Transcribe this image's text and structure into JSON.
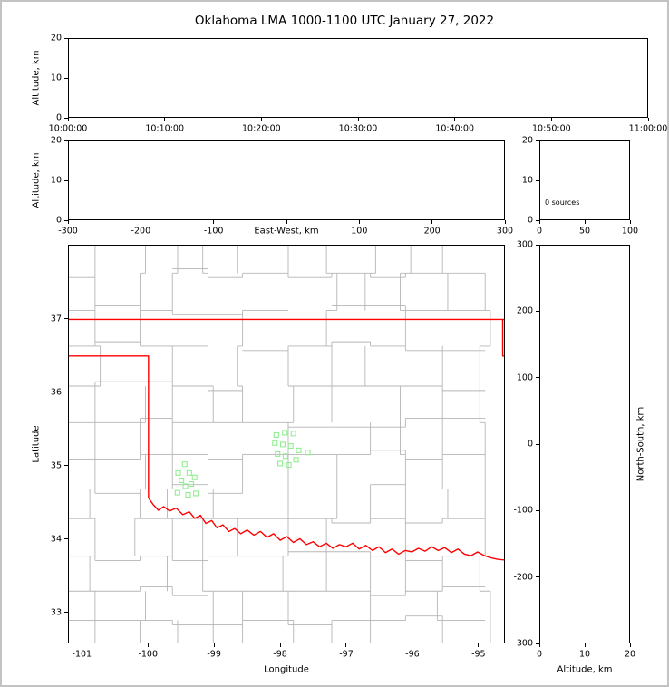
{
  "title": "Oklahoma LMA 1000-1100 UTC January 27, 2022",
  "colors": {
    "page_border": "#c3c3c3",
    "axis": "#000000",
    "state_border": "#ff0000",
    "county_line": "#b5b5b5",
    "source_marker": "#90ee90"
  },
  "chart_data": [
    {
      "name": "time_height",
      "type": "scatter",
      "title": "",
      "xlabel": "",
      "ylabel": "Altitude, km",
      "xlim": [
        0,
        6
      ],
      "xticks": [
        0,
        1,
        2,
        3,
        4,
        5,
        6
      ],
      "xtick_labels": [
        "10:00:00",
        "10:10:00",
        "10:20:00",
        "10:30:00",
        "10:40:00",
        "10:50:00",
        "11:00:00"
      ],
      "ylim": [
        0,
        20
      ],
      "yticks": [
        0,
        10,
        20
      ],
      "grid": false,
      "points": []
    },
    {
      "name": "ew_height",
      "type": "scatter",
      "xlabel": "East-West, km",
      "ylabel": "Altitude, km",
      "xlim": [
        -300,
        300
      ],
      "xticks": [
        -300,
        -200,
        -100,
        0,
        100,
        200,
        300
      ],
      "xtick_labels": [
        "-300",
        "-200",
        "-100",
        "",
        "100",
        "200",
        "300"
      ],
      "ylim": [
        0,
        20
      ],
      "yticks": [
        0,
        10,
        20
      ],
      "grid": false,
      "points": []
    },
    {
      "name": "source_histogram",
      "type": "line",
      "annotation": "0 sources",
      "xlabel": "",
      "ylabel": "",
      "xlim": [
        0,
        100
      ],
      "xticks": [
        0,
        50,
        100
      ],
      "ylim": [
        0,
        20
      ],
      "yticks": [
        0,
        10,
        20
      ],
      "grid": false,
      "points": []
    },
    {
      "name": "plan_view",
      "type": "scatter",
      "xlabel": "Longitude",
      "ylabel": "Latitude",
      "xlim": [
        -101.21,
        -94.6
      ],
      "xticks": [
        -101,
        -100,
        -99,
        -98,
        -97,
        -96,
        -95
      ],
      "ylim": [
        32.58,
        38.01
      ],
      "yticks": [
        33,
        34,
        35,
        36,
        37
      ],
      "grid": false,
      "marker": "open-square",
      "marker_size_px": 5,
      "sources_lonlat": [
        [
          -99.45,
          35.02
        ],
        [
          -99.55,
          34.9
        ],
        [
          -99.38,
          34.9
        ],
        [
          -99.5,
          34.8
        ],
        [
          -99.3,
          34.84
        ],
        [
          -99.44,
          34.72
        ],
        [
          -99.35,
          34.75
        ],
        [
          -99.56,
          34.63
        ],
        [
          -99.4,
          34.6
        ],
        [
          -99.28,
          34.62
        ],
        [
          -98.06,
          35.42
        ],
        [
          -97.93,
          35.45
        ],
        [
          -97.8,
          35.44
        ],
        [
          -98.08,
          35.31
        ],
        [
          -97.96,
          35.29
        ],
        [
          -97.84,
          35.27
        ],
        [
          -98.04,
          35.16
        ],
        [
          -97.92,
          35.13
        ],
        [
          -97.72,
          35.21
        ],
        [
          -97.58,
          35.18
        ],
        [
          -98.0,
          35.03
        ],
        [
          -97.87,
          35.01
        ],
        [
          -97.76,
          35.08
        ]
      ],
      "state_border_paths": {
        "kansas_border": [
          [
            -101.21,
            37.0
          ],
          [
            -94.6,
            37.0
          ]
        ],
        "eastern_border": [
          [
            -94.62,
            37.0
          ],
          [
            -94.62,
            36.5
          ],
          [
            -94.6,
            36.5
          ]
        ],
        "panhandle_and_texas_border": [
          [
            -101.21,
            36.5
          ],
          [
            -100.0,
            36.5
          ],
          [
            -100.0,
            34.56
          ]
        ],
        "red_river_border": [
          [
            -100.0,
            34.56
          ],
          [
            -99.93,
            34.47
          ],
          [
            -99.85,
            34.39
          ],
          [
            -99.77,
            34.44
          ],
          [
            -99.68,
            34.38
          ],
          [
            -99.58,
            34.42
          ],
          [
            -99.48,
            34.33
          ],
          [
            -99.38,
            34.37
          ],
          [
            -99.3,
            34.28
          ],
          [
            -99.21,
            34.32
          ],
          [
            -99.13,
            34.21
          ],
          [
            -99.04,
            34.25
          ],
          [
            -98.96,
            34.15
          ],
          [
            -98.87,
            34.19
          ],
          [
            -98.78,
            34.1
          ],
          [
            -98.69,
            34.14
          ],
          [
            -98.6,
            34.07
          ],
          [
            -98.5,
            34.12
          ],
          [
            -98.4,
            34.05
          ],
          [
            -98.3,
            34.1
          ],
          [
            -98.2,
            34.02
          ],
          [
            -98.1,
            34.07
          ],
          [
            -98.0,
            33.98
          ],
          [
            -97.9,
            34.03
          ],
          [
            -97.8,
            33.95
          ],
          [
            -97.7,
            34.0
          ],
          [
            -97.6,
            33.92
          ],
          [
            -97.5,
            33.96
          ],
          [
            -97.4,
            33.89
          ],
          [
            -97.3,
            33.94
          ],
          [
            -97.2,
            33.87
          ],
          [
            -97.1,
            33.92
          ],
          [
            -97.0,
            33.89
          ],
          [
            -96.9,
            33.94
          ],
          [
            -96.8,
            33.86
          ],
          [
            -96.7,
            33.91
          ],
          [
            -96.6,
            33.84
          ],
          [
            -96.5,
            33.89
          ],
          [
            -96.4,
            33.81
          ],
          [
            -96.3,
            33.86
          ],
          [
            -96.2,
            33.79
          ],
          [
            -96.1,
            33.84
          ],
          [
            -96.0,
            33.82
          ],
          [
            -95.9,
            33.87
          ],
          [
            -95.8,
            33.83
          ],
          [
            -95.7,
            33.89
          ],
          [
            -95.6,
            33.84
          ],
          [
            -95.5,
            33.88
          ],
          [
            -95.4,
            33.81
          ],
          [
            -95.3,
            33.86
          ],
          [
            -95.2,
            33.79
          ],
          [
            -95.1,
            33.77
          ],
          [
            -95.0,
            33.82
          ],
          [
            -94.9,
            33.77
          ],
          [
            -94.8,
            33.74
          ],
          [
            -94.7,
            33.72
          ],
          [
            -94.6,
            33.71
          ]
        ]
      }
    },
    {
      "name": "ns_height",
      "type": "scatter",
      "xlabel": "Altitude, km",
      "ylabel": "North-South, km",
      "xlim": [
        0,
        20
      ],
      "xticks": [
        0,
        10,
        20
      ],
      "ylim": [
        -300,
        300
      ],
      "yticks": [
        -300,
        -200,
        -100,
        0,
        100,
        200,
        300
      ],
      "grid": false,
      "points": []
    }
  ]
}
